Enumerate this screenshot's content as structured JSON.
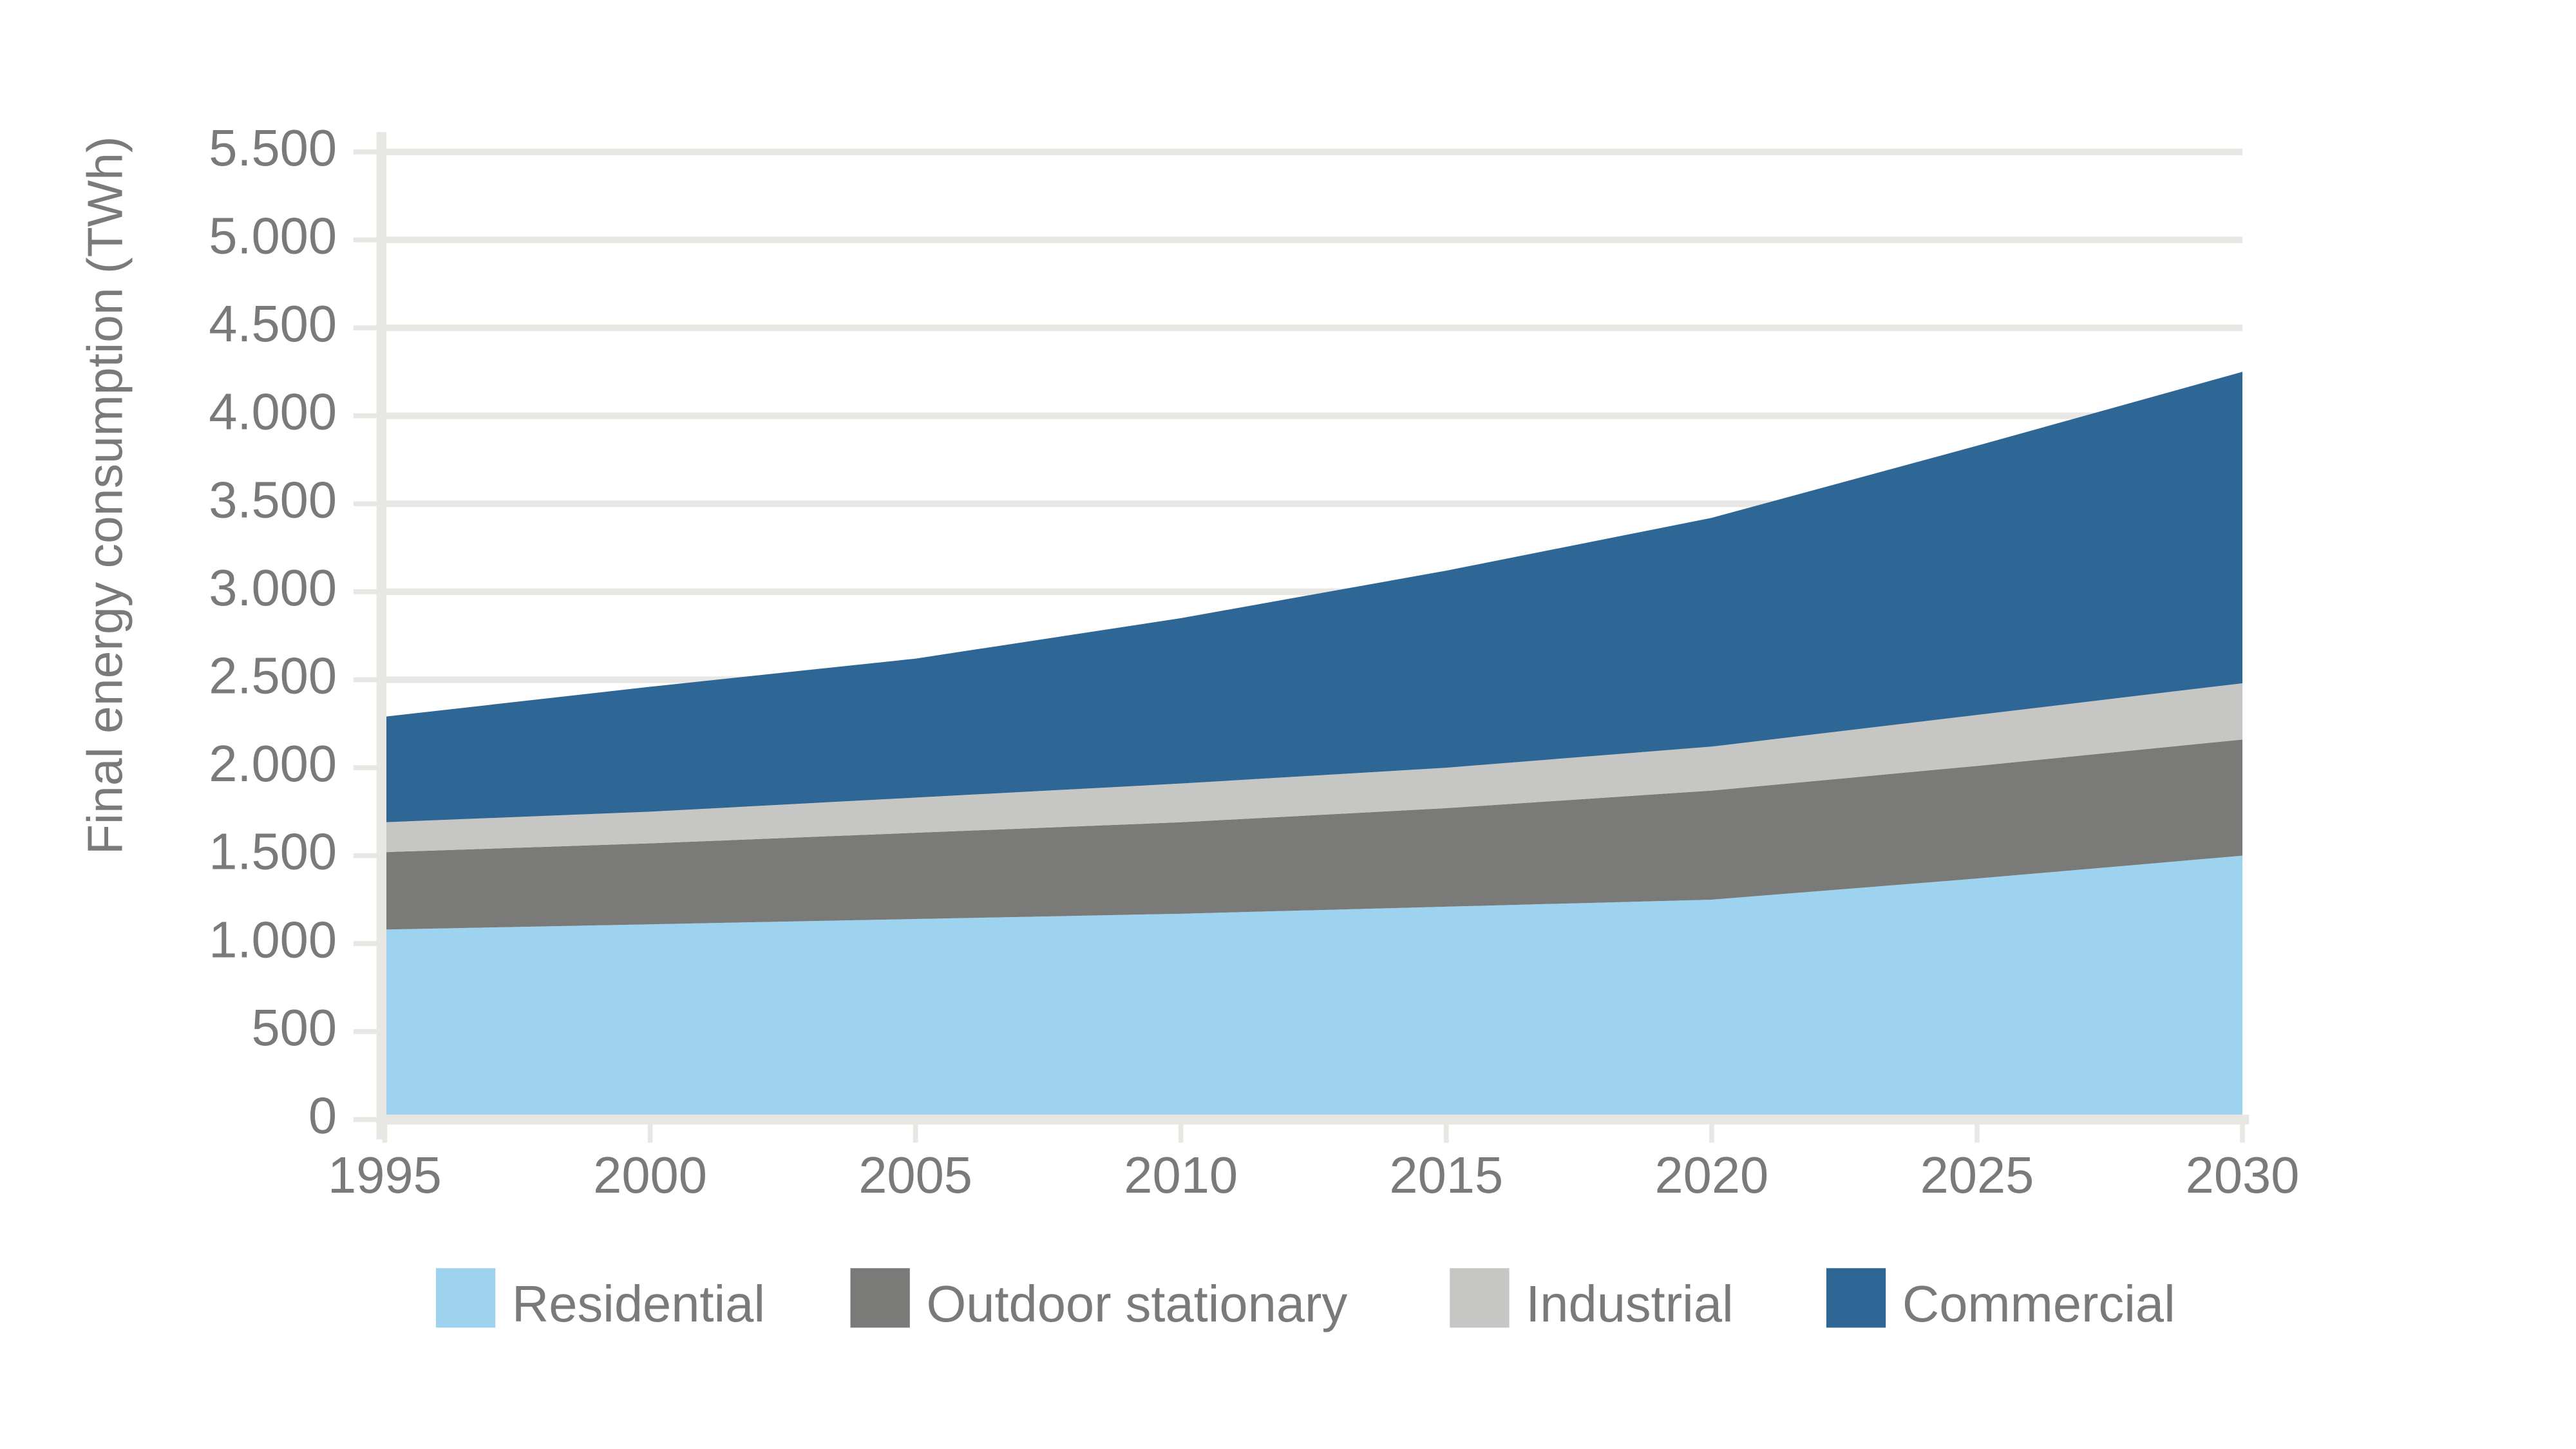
{
  "chart_data": {
    "type": "stacked-area",
    "y_label": "Final energy consumption (TWh)",
    "x": [
      1995,
      2000,
      2005,
      2010,
      2015,
      2020,
      2025,
      2030
    ],
    "xlim": [
      1995,
      2030
    ],
    "xticks": [
      1995,
      2000,
      2005,
      2010,
      2015,
      2020,
      2025,
      2030
    ],
    "ylim": [
      0,
      5500
    ],
    "yticks": [
      0,
      500,
      {
        "value": 1000,
        "label": "1.000"
      },
      {
        "value": 1500,
        "label": "1.500"
      },
      {
        "value": 2000,
        "label": "2.000"
      },
      {
        "value": 2500,
        "label": "2.500"
      },
      {
        "value": 3000,
        "label": "3.000"
      },
      {
        "value": 3500,
        "label": "3.500"
      },
      {
        "value": 4000,
        "label": "4.000"
      },
      {
        "value": 4500,
        "label": "4.500"
      },
      {
        "value": 5000,
        "label": "5.000"
      },
      {
        "value": 5500,
        "label": "5.500"
      }
    ],
    "grid": true,
    "series": [
      {
        "name": "Residential",
        "color": "#9dd3ee",
        "values": [
          1080,
          1110,
          1140,
          1170,
          1210,
          1250,
          1370,
          1500
        ]
      },
      {
        "name": "Outdoor stationary",
        "color": "#7a7a79",
        "values": [
          440,
          460,
          490,
          520,
          560,
          620,
          640,
          660
        ]
      },
      {
        "name": "Industrial",
        "color": "#c6c6c5",
        "values": [
          170,
          180,
          200,
          220,
          230,
          250,
          290,
          320
        ]
      },
      {
        "name": "Commercial",
        "color": "#2e6795",
        "values": [
          600,
          710,
          790,
          940,
          1120,
          1300,
          1530,
          1770
        ]
      }
    ]
  }
}
